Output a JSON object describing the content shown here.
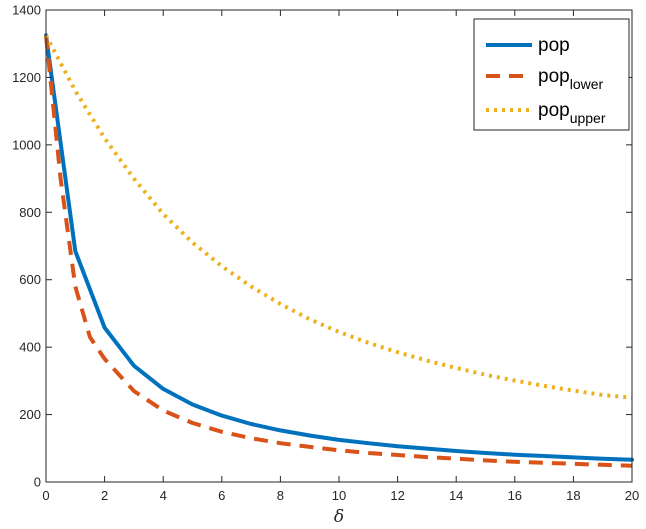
{
  "chart_data": {
    "type": "line",
    "xlabel": "δ",
    "ylabel": "",
    "xlim": [
      0,
      20
    ],
    "ylim": [
      0,
      1400
    ],
    "xticks": [
      0,
      2,
      4,
      6,
      8,
      10,
      12,
      14,
      16,
      18,
      20
    ],
    "yticks": [
      0,
      200,
      400,
      600,
      800,
      1000,
      1200,
      1400
    ],
    "grid": false,
    "legend_position": "top-right",
    "series": [
      {
        "name": "pop",
        "name_main": "pop",
        "name_sub": "",
        "color": "#0072BD",
        "style": "solid",
        "x": [
          0,
          1,
          2,
          3,
          4,
          5,
          6,
          7,
          8,
          9,
          10,
          11,
          12,
          13,
          14,
          15,
          16,
          17,
          18,
          19,
          20
        ],
        "y": [
          1325,
          685,
          458,
          345,
          276,
          230,
          197,
          172,
          153,
          138,
          125,
          115,
          106,
          99,
          92,
          86,
          81,
          77,
          73,
          69,
          66
        ]
      },
      {
        "name": "pop_lower",
        "name_main": "pop",
        "name_sub": "lower",
        "color": "#D95319",
        "style": "dashed",
        "x": [
          0,
          0.5,
          1,
          1.5,
          2,
          3,
          4,
          5,
          6,
          7,
          8,
          9,
          10,
          11,
          12,
          13,
          14,
          15,
          16,
          17,
          18,
          19,
          20
        ],
        "y": [
          1325,
          900,
          580,
          430,
          365,
          270,
          212,
          175,
          149,
          130,
          115,
          104,
          94,
          86,
          80,
          74,
          69,
          64,
          60,
          57,
          54,
          51,
          48
        ]
      },
      {
        "name": "pop_upper",
        "name_main": "pop",
        "name_sub": "upper",
        "color": "#EDB120",
        "style": "dotted",
        "x": [
          0,
          1,
          2,
          3,
          4,
          5,
          6,
          7,
          8,
          9,
          10,
          11,
          12,
          13,
          14,
          15,
          16,
          17,
          18,
          19,
          20
        ],
        "y": [
          1325,
          1160,
          1020,
          900,
          795,
          710,
          640,
          580,
          528,
          483,
          445,
          413,
          385,
          360,
          338,
          318,
          301,
          285,
          271,
          258,
          250
        ]
      }
    ]
  }
}
